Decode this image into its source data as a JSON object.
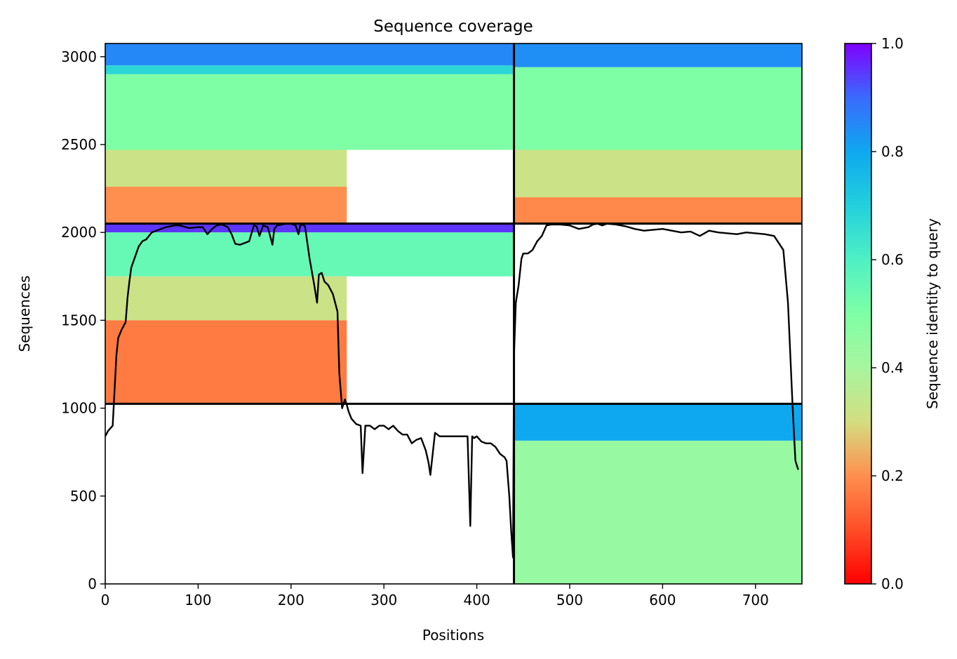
{
  "chart_data": {
    "type": "heatmap",
    "title": "Sequence coverage",
    "xlabel": "Positions",
    "ylabel": "Sequences",
    "xlim": [
      0,
      750
    ],
    "ylim": [
      0,
      3075
    ],
    "x_ticks": [
      "0",
      "100",
      "200",
      "300",
      "400",
      "500",
      "600",
      "700"
    ],
    "y_ticks": [
      "0",
      "500",
      "1000",
      "1500",
      "2000",
      "2500",
      "3000"
    ],
    "colorbar": {
      "label": "Sequence identity to query",
      "range": [
        0,
        1
      ],
      "ticks": [
        "0.0",
        "0.2",
        "0.4",
        "0.6",
        "0.8",
        "1.0"
      ],
      "colormap": "rainbow_r"
    },
    "dividers": {
      "vertical_x": 440,
      "horizontal_y": [
        1025,
        2050
      ]
    },
    "blocks": [
      {
        "name": "top-left",
        "x": [
          0,
          440
        ],
        "y": [
          2050,
          3075
        ],
        "bands": [
          {
            "y": [
              2950,
              3075
            ],
            "identity": 0.85,
            "x_end": 440
          },
          {
            "y": [
              2900,
              2950
            ],
            "identity": 0.68,
            "x_end": 440
          },
          {
            "y": [
              2470,
              2900
            ],
            "identity": 0.5,
            "x_end": 440
          },
          {
            "y": [
              2260,
              2470
            ],
            "identity": 0.32,
            "x_end": 260
          },
          {
            "y": [
              2050,
              2260
            ],
            "identity": 0.2,
            "x_end": 260
          }
        ]
      },
      {
        "name": "top-right",
        "x": [
          440,
          750
        ],
        "y": [
          2050,
          3075
        ],
        "bands": [
          {
            "y": [
              2940,
              3075
            ],
            "identity": 0.84,
            "x_end": 750
          },
          {
            "y": [
              2470,
              2940
            ],
            "identity": 0.5,
            "x_end": 750
          },
          {
            "y": [
              2200,
              2470
            ],
            "identity": 0.32,
            "x_end": 750
          },
          {
            "y": [
              2050,
              2200
            ],
            "identity": 0.19,
            "x_end": 750
          }
        ]
      },
      {
        "name": "middle-left",
        "x": [
          0,
          440
        ],
        "y": [
          1025,
          2050
        ],
        "bands": [
          {
            "y": [
              2000,
              2050
            ],
            "identity": 0.95,
            "x_end": 440
          },
          {
            "y": [
              1750,
              2000
            ],
            "identity": 0.55,
            "x_end": 440
          },
          {
            "y": [
              1500,
              1750
            ],
            "identity": 0.32,
            "x_end": 260
          },
          {
            "y": [
              1025,
              1500
            ],
            "identity": 0.17,
            "x_end": 260
          }
        ]
      },
      {
        "name": "bottom-right",
        "x": [
          440,
          750
        ],
        "y": [
          0,
          1025
        ],
        "bands": [
          {
            "y": [
              815,
              1025
            ],
            "identity": 0.8,
            "x_end": 750
          },
          {
            "y": [
              0,
              815
            ],
            "identity": 0.44,
            "x_end": 750
          }
        ]
      }
    ],
    "coverage_line": {
      "x": [
        0,
        3,
        8,
        12,
        14,
        18,
        22,
        24,
        26,
        28,
        32,
        36,
        40,
        44,
        50,
        55,
        60,
        65,
        70,
        75,
        80,
        90,
        100,
        105,
        110,
        115,
        120,
        125,
        128,
        132,
        136,
        140,
        145,
        150,
        155,
        160,
        163,
        166,
        170,
        175,
        180,
        182,
        185,
        190,
        195,
        200,
        205,
        208,
        210,
        213,
        215,
        220,
        225,
        228,
        230,
        233,
        236,
        240,
        245,
        250,
        252,
        255,
        258,
        260,
        262,
        265,
        270,
        275,
        277,
        280,
        285,
        290,
        295,
        300,
        305,
        310,
        315,
        320,
        325,
        330,
        335,
        340,
        345,
        348,
        350,
        355,
        360,
        365,
        370,
        375,
        380,
        385,
        390,
        393,
        395,
        397,
        400,
        405,
        410,
        415,
        420,
        425,
        430,
        432,
        435,
        437,
        439,
        440,
        442,
        445,
        448,
        450,
        455,
        460,
        465,
        470,
        475,
        480,
        490,
        500,
        510,
        520,
        525,
        530,
        535,
        540,
        550,
        560,
        570,
        580,
        590,
        600,
        610,
        620,
        630,
        640,
        650,
        660,
        670,
        680,
        690,
        700,
        710,
        720,
        730,
        735,
        740,
        743,
        746,
        748,
        750
      ],
      "y": [
        840,
        870,
        900,
        1300,
        1400,
        1450,
        1490,
        1630,
        1720,
        1800,
        1860,
        1920,
        1950,
        1960,
        2000,
        2010,
        2020,
        2030,
        2035,
        2040,
        2040,
        2025,
        2030,
        2030,
        1990,
        2020,
        2040,
        2045,
        2040,
        2030,
        1990,
        1935,
        1930,
        1940,
        1950,
        2040,
        2035,
        1980,
        2040,
        2030,
        1930,
        2020,
        2040,
        2045,
        2050,
        2050,
        2040,
        1990,
        2040,
        2045,
        2035,
        1850,
        1700,
        1600,
        1760,
        1770,
        1720,
        1700,
        1650,
        1550,
        1200,
        1000,
        1050,
        1020,
        980,
        940,
        910,
        900,
        630,
        900,
        900,
        880,
        900,
        900,
        880,
        900,
        870,
        850,
        850,
        800,
        820,
        830,
        760,
        690,
        620,
        860,
        840,
        840,
        840,
        840,
        840,
        840,
        840,
        330,
        840,
        830,
        840,
        810,
        800,
        800,
        780,
        740,
        720,
        700,
        500,
        300,
        150,
        1300,
        1600,
        1700,
        1850,
        1880,
        1880,
        1900,
        1950,
        1980,
        2040,
        2045,
        2045,
        2040,
        2020,
        2030,
        2045,
        2050,
        2040,
        2050,
        2045,
        2035,
        2020,
        2010,
        2015,
        2020,
        2010,
        2000,
        2005,
        1980,
        2010,
        2000,
        1995,
        1990,
        2000,
        1995,
        1990,
        1980,
        1900,
        1600,
        1000,
        700,
        650
      ]
    }
  }
}
